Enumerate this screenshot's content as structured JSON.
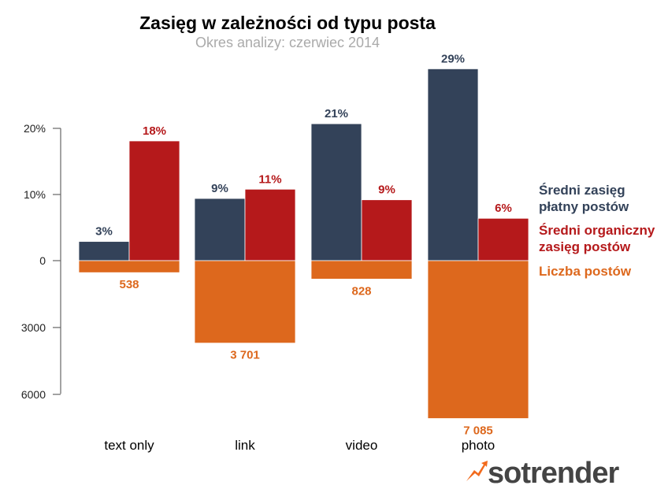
{
  "chart_data": {
    "type": "bar",
    "title": "Zasięg w zależności od typu posta",
    "subtitle": "Okres analizy: czerwiec 2014",
    "categories": [
      "text only",
      "link",
      "video",
      "photo"
    ],
    "series": [
      {
        "name": "Średni zasięg płatny postów",
        "legend_lines": [
          "Średni zasięg",
          "płatny postów"
        ],
        "color": "#334259",
        "values": [
          2.9,
          9.4,
          20.7,
          29.0
        ],
        "labels": [
          "3%",
          "9%",
          "21%",
          "29%"
        ],
        "direction": "up"
      },
      {
        "name": "Średni organiczny zasięg postów",
        "legend_lines": [
          "Średni organiczny",
          "zasięg postów"
        ],
        "color": "#b5191b",
        "values": [
          18.1,
          10.8,
          9.2,
          6.4
        ],
        "labels": [
          "18%",
          "11%",
          "9%",
          "6%"
        ],
        "direction": "up"
      },
      {
        "name": "Liczba postów",
        "legend_lines": [
          "Liczba postów"
        ],
        "color": "#dd681d",
        "values": [
          538,
          3701,
          828,
          7085
        ],
        "labels": [
          "538",
          "3 701",
          "828",
          "7 085"
        ],
        "direction": "down"
      }
    ],
    "yaxis_upper": {
      "ticks": [
        0,
        10,
        20
      ],
      "tick_labels": [
        "0",
        "10%",
        "20%"
      ],
      "unit": "%"
    },
    "yaxis_lower": {
      "ticks": [
        3000,
        6000
      ],
      "tick_labels": [
        "3000",
        "6000"
      ]
    },
    "legend_position": "right",
    "grid": false
  },
  "branding": {
    "logo_text": "sotrender"
  }
}
